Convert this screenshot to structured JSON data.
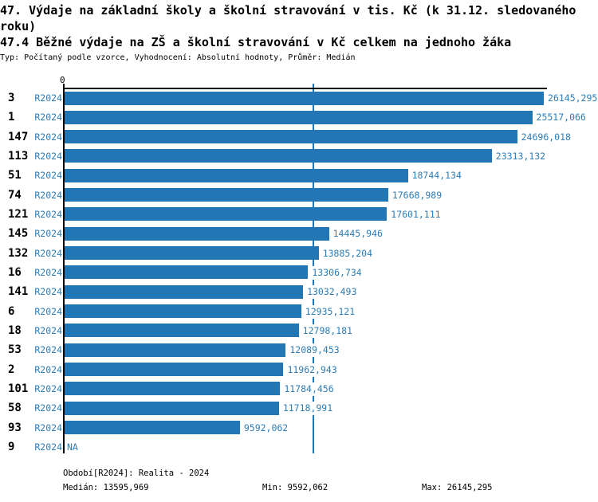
{
  "title": "47. Výdaje na základní školy a školní stravování v tis. Kč (k 31.12. sledovaného roku)",
  "subtitle": "47.4 Běžné výdaje na ZŠ a školní stravování v Kč celkem na jednoho žáka",
  "meta": "Typ: Počítaný podle vzorce, Vyhodnocení: Absolutní hodnoty, Průměr: Medián",
  "axis": {
    "zero_label": "0"
  },
  "colors": {
    "bar": "#2376b4",
    "blue_text": "#2d7db8",
    "median_line": "#2376b4",
    "axis": "#000000"
  },
  "chart_data": {
    "type": "bar",
    "orientation": "horizontal",
    "title": "47.4 Běžné výdaje na ZŠ a školní stravování v Kč celkem na jednoho žáka",
    "series_label": "R2024",
    "categories": [
      "3",
      "1",
      "147",
      "113",
      "51",
      "74",
      "121",
      "145",
      "132",
      "16",
      "141",
      "6",
      "18",
      "53",
      "2",
      "101",
      "58",
      "93",
      "9"
    ],
    "values": [
      26145.295,
      25517.066,
      24696.018,
      23313.132,
      18744.134,
      17668.989,
      17601.111,
      14445.946,
      13885.204,
      13306.734,
      13032.493,
      12935.121,
      12798.181,
      12089.453,
      11962.943,
      11784.456,
      11718.991,
      9592.062,
      null
    ],
    "value_labels": [
      "26145,295",
      "25517,066",
      "24696,018",
      "23313,132",
      "18744,134",
      "17668,989",
      "17601,111",
      "14445,946",
      "13885,204",
      "13306,734",
      "13032,493",
      "12935,121",
      "12798,181",
      "12089,453",
      "11962,943",
      "11784,456",
      "11718,991",
      "9592,062",
      "NA"
    ],
    "xlim": [
      0,
      26145.295
    ],
    "grid": false,
    "legend": "none",
    "stats": {
      "median": 13595.969,
      "min": 9592.062,
      "max": 26145.295
    }
  },
  "footer": {
    "period": "Období[R2024]: Realita - 2024",
    "median": "Medián: 13595,969",
    "min": "Min: 9592,062",
    "max": "Max: 26145,295"
  }
}
